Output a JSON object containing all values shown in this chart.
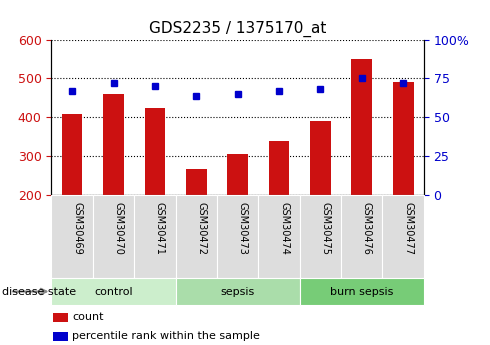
{
  "title": "GDS2235 / 1375170_at",
  "samples": [
    "GSM30469",
    "GSM30470",
    "GSM30471",
    "GSM30472",
    "GSM30473",
    "GSM30474",
    "GSM30475",
    "GSM30476",
    "GSM30477"
  ],
  "counts": [
    408,
    460,
    425,
    268,
    305,
    338,
    390,
    550,
    490
  ],
  "percentiles": [
    67,
    72,
    70,
    64,
    65,
    67,
    68,
    75,
    72
  ],
  "ylim_left": [
    200,
    600
  ],
  "ylim_right": [
    0,
    100
  ],
  "yticks_left": [
    200,
    300,
    400,
    500,
    600
  ],
  "yticks_right": [
    0,
    25,
    50,
    75,
    100
  ],
  "bar_color": "#cc1111",
  "dot_color": "#0000cc",
  "groups": [
    {
      "label": "control",
      "indices": [
        0,
        1,
        2
      ],
      "color": "#cceecc"
    },
    {
      "label": "sepsis",
      "indices": [
        3,
        4,
        5
      ],
      "color": "#aaddaa"
    },
    {
      "label": "burn sepsis",
      "indices": [
        6,
        7,
        8
      ],
      "color": "#77cc77"
    }
  ],
  "legend_items": [
    {
      "label": "count",
      "color": "#cc1111"
    },
    {
      "label": "percentile rank within the sample",
      "color": "#0000cc"
    }
  ],
  "disease_state_label": "disease state"
}
